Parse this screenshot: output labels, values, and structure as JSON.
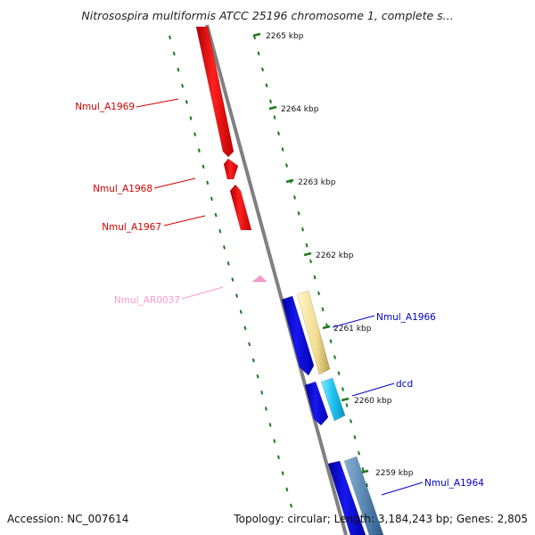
{
  "title": "Nitrosospira multiformis ATCC 25196 chromosome 1, complete s...",
  "accession_label": "Accession: NC_007614",
  "topology_label": "Topology: circular; Length: 3,184,243 bp; Genes: 2,805",
  "colors": {
    "backbone": "#808080",
    "tick": "#1a7a1a",
    "tick_label": "#111111",
    "left_label": "#d40000",
    "right_label": "#0000c8",
    "rna_label": "#ff99cc"
  },
  "kbp_ticks": [
    "2265 kbp",
    "2264 kbp",
    "2263 kbp",
    "2262 kbp",
    "2261 kbp",
    "2260 kbp",
    "2259 kbp"
  ],
  "features": [
    {
      "name": "Nmul_A1969",
      "color": "#ff1a1a",
      "strand": "reverse"
    },
    {
      "name": "Nmul_A1968",
      "color": "#ff1a1a",
      "strand": "reverse"
    },
    {
      "name": "Nmul_A1967",
      "color": "#ff1a1a",
      "strand": "reverse"
    },
    {
      "name": "Nmul_AR0037",
      "color": "#ff99cc",
      "strand": "reverse"
    },
    {
      "name": "Nmul_A1966",
      "color": "#1010ee",
      "strand": "forward"
    },
    {
      "name": "dcd",
      "color": "#1010ee",
      "strand": "forward"
    },
    {
      "name": "Nmul_A1964",
      "color": "#1010ee",
      "strand": "forward"
    }
  ],
  "cog_bands": [
    {
      "color": "#f5e6a0"
    },
    {
      "color": "#22c8f0"
    },
    {
      "color": "#5a8ab5"
    }
  ]
}
